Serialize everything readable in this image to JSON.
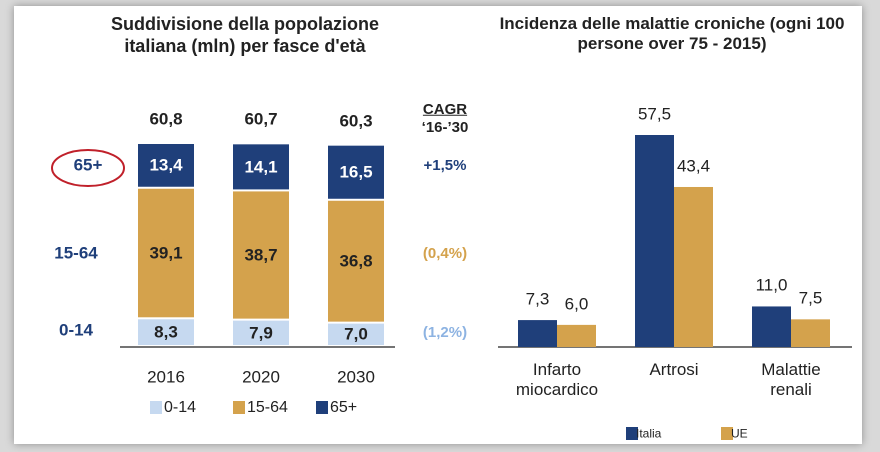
{
  "chart_data": [
    {
      "type": "bar",
      "stacked": true,
      "title": "Suddivisione della popolazione italiana (mln) per fasce d'età",
      "categories": [
        "2016",
        "2020",
        "2030"
      ],
      "series": [
        {
          "name": "0-14",
          "color": "#c6d9f0",
          "values": [
            8.3,
            7.9,
            7.0
          ],
          "value_labels": [
            "8,3",
            "7,9",
            "7,0"
          ],
          "cagr": "(1,2%)",
          "cagr_color": "#8db3e2"
        },
        {
          "name": "15-64",
          "color": "#d4a24c",
          "values": [
            39.1,
            38.7,
            36.8
          ],
          "value_labels": [
            "39,1",
            "38,7",
            "36,8"
          ],
          "cagr": "(0,4%)",
          "cagr_color": "#d4a24c"
        },
        {
          "name": "65+",
          "color": "#1f3f7a",
          "values": [
            13.4,
            14.1,
            16.5
          ],
          "value_labels": [
            "13,4",
            "14,1",
            "16,5"
          ],
          "cagr": "+1,5%",
          "cagr_color": "#1f3f7a"
        }
      ],
      "totals": [
        60.8,
        60.7,
        60.3
      ],
      "totals_labels": [
        "60,8",
        "60,7",
        "60,3"
      ],
      "cagr_title": "CAGR",
      "cagr_period": "‘16-’30"
    },
    {
      "type": "bar",
      "stacked": false,
      "title": "Incidenza delle malattie croniche (ogni 100 persone over 75 - 2015)",
      "categories": [
        "Infarto miocardico",
        "Artrosi",
        "Malattie renali"
      ],
      "series": [
        {
          "name": "Italia",
          "color": "#1f3f7a",
          "values": [
            7.3,
            57.5,
            11.0
          ],
          "value_labels": [
            "7,3",
            "57,5",
            "11,0"
          ]
        },
        {
          "name": "UE",
          "color": "#d4a24c",
          "values": [
            6.0,
            43.4,
            7.5
          ],
          "value_labels": [
            "6,0",
            "43,4",
            "7,5"
          ]
        }
      ]
    }
  ]
}
